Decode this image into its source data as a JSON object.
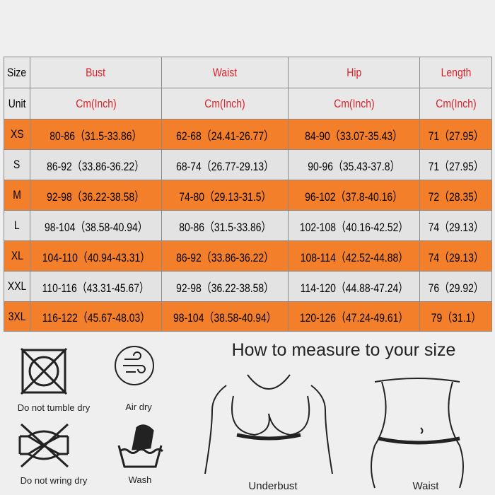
{
  "table": {
    "header": [
      "Size",
      "Bust",
      "Waist",
      "Hip",
      "Length"
    ],
    "units": [
      "Unit",
      "Cm(Inch)",
      "Cm(Inch)",
      "Cm(Inch)",
      "Cm(Inch)"
    ],
    "rows": [
      [
        "XS",
        "80-86（31.5-33.86）",
        "62-68（24.41-26.77）",
        "84-90（33.07-35.43）",
        "71（27.95）"
      ],
      [
        "S",
        "86-92（33.86-36.22）",
        "68-74（26.77-29.13）",
        "90-96（35.43-37.8）",
        "71（27.95）"
      ],
      [
        "M",
        "92-98（36.22-38.58）",
        "74-80（29.13-31.5）",
        "96-102（37.8-40.16）",
        "72（28.35）"
      ],
      [
        "L",
        "98-104（38.58-40.94）",
        "80-86（31.5-33.86）",
        "102-108（40.16-42.52）",
        "74（29.13）"
      ],
      [
        "XL",
        "104-110（40.94-43.31）",
        "86-92（33.86-36.22）",
        "108-114（42.52-44.88）",
        "74（29.13）"
      ],
      [
        "XXL",
        "110-116（43.31-45.67）",
        "92-98（36.22-38.58）",
        "114-120（44.88-47.24）",
        "76（29.92）"
      ],
      [
        "3XL",
        "116-122（45.67-48.03）",
        "98-104（38.58-40.94）",
        "120-126（47.24-49.61）",
        "79（31.1）"
      ]
    ]
  },
  "care": [
    "Do not tumble dry",
    "Air dry",
    "Do not wring dry",
    "Wash"
  ],
  "measure": {
    "title": "How to measure to your size",
    "labels": [
      "Underbust",
      "Waist"
    ]
  }
}
